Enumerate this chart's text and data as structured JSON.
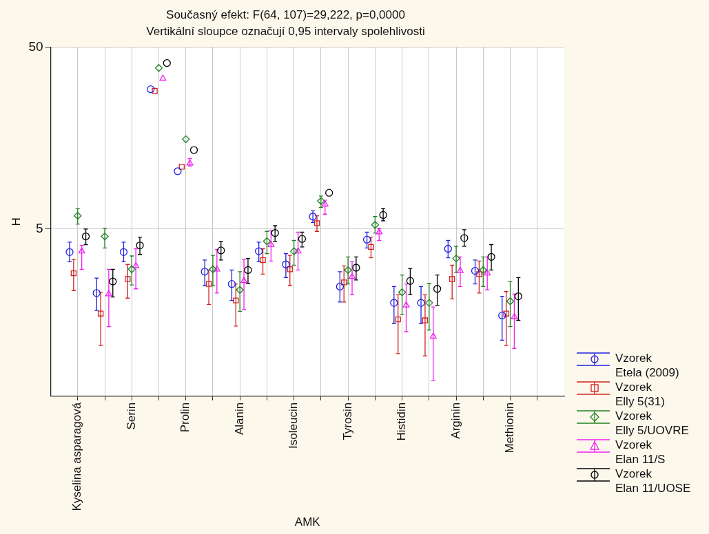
{
  "chart_data": {
    "type": "scatter",
    "title": "Současný efekt: F(64, 107)=29,222, p=0,0000",
    "subtitle": "Vertikální sloupce označují 0,95 intervaly spolehlivosti",
    "xlabel": "AMK",
    "ylabel": "H",
    "categories": [
      "Kyselina asparagová",
      null,
      "Serin",
      null,
      "Prolin",
      null,
      "Alanin",
      null,
      "Isoleucin",
      null,
      "Tyrosin",
      null,
      "Histidin",
      null,
      "Arginin",
      null,
      "Methionin",
      null
    ],
    "log": "y",
    "ylim": [
      0.62,
      50
    ],
    "yticks": [
      5,
      50
    ],
    "grid": true,
    "legend": "bottom right",
    "series": [
      {
        "name": "Vzorek\nEtela (2009)",
        "color": "#2020e0",
        "marker": "circle",
        "values": [
          3.73,
          2.22,
          3.73,
          29.4,
          10.4,
          2.91,
          2.49,
          3.77,
          3.19,
          5.85,
          2.41,
          4.37,
          1.96,
          1.96,
          3.89,
          2.94,
          1.67,
          null
        ],
        "errors": [
          [
            3.3,
            4.23
          ],
          [
            1.78,
            2.68
          ],
          [
            3.3,
            4.23
          ],
          null,
          null,
          [
            2.44,
            3.37
          ],
          [
            2.02,
            2.97
          ],
          [
            3.3,
            4.23
          ],
          [
            2.7,
            3.66
          ],
          [
            5.43,
            6.29
          ],
          [
            1.98,
            2.91
          ],
          [
            3.93,
            4.8
          ],
          [
            1.51,
            2.41
          ],
          [
            1.51,
            2.41
          ],
          [
            3.47,
            4.32
          ],
          [
            2.49,
            3.37
          ],
          [
            1.22,
            2.13
          ],
          null
        ]
      },
      {
        "name": "Vzorek\nElly 5(31)",
        "color": "#d02020",
        "marker": "square",
        "values": [
          2.85,
          1.71,
          2.65,
          28.8,
          11.0,
          2.49,
          2.02,
          3.37,
          3.0,
          5.38,
          2.54,
          3.98,
          1.59,
          1.57,
          2.65,
          2.82,
          1.71,
          null
        ],
        "errors": [
          [
            2.29,
            3.4
          ],
          [
            1.14,
            2.24
          ],
          [
            2.08,
            3.19
          ],
          null,
          null,
          [
            1.92,
            2.97
          ],
          [
            1.46,
            2.49
          ],
          [
            2.82,
            3.89
          ],
          [
            2.44,
            3.58
          ],
          [
            4.85,
            5.91
          ],
          [
            1.98,
            3.13
          ],
          [
            3.47,
            4.51
          ],
          [
            1.03,
            2.17
          ],
          [
            1.0,
            2.17
          ],
          [
            2.06,
            3.16
          ],
          [
            2.22,
            3.33
          ],
          [
            1.14,
            2.26
          ],
          null
        ]
      },
      {
        "name": "Vzorek\nElly 5/UOVRE",
        "color": "#208020",
        "marker": "diamond",
        "values": [
          5.91,
          4.55,
          3.0,
          38.5,
          15.6,
          3.0,
          2.31,
          4.28,
          3.77,
          7.13,
          2.97,
          5.27,
          2.24,
          1.96,
          3.44,
          2.97,
          2.0,
          null
        ],
        "errors": [
          [
            5.32,
            6.49
          ],
          [
            3.93,
            5.05
          ],
          [
            2.46,
            3.55
          ],
          null,
          null,
          [
            2.44,
            3.58
          ],
          [
            1.76,
            2.91
          ],
          [
            3.66,
            4.85
          ],
          [
            3.16,
            4.32
          ],
          [
            6.56,
            7.59
          ],
          [
            2.49,
            3.51
          ],
          [
            4.75,
            5.85
          ],
          [
            1.69,
            2.79
          ],
          [
            1.39,
            2.51
          ],
          [
            2.88,
            4.02
          ],
          [
            2.41,
            3.51
          ],
          [
            1.45,
            2.57
          ],
          null
        ]
      },
      {
        "name": "Vzorek\nElan 11/S",
        "color": "#f020f0",
        "marker": "triangle",
        "values": [
          3.77,
          2.19,
          3.13,
          33.7,
          11.5,
          3.0,
          2.59,
          4.1,
          3.77,
          6.83,
          2.73,
          4.8,
          1.9,
          1.28,
          2.94,
          2.85,
          1.64,
          null
        ],
        "errors": [
          [
            3.0,
            4.06
          ],
          [
            1.45,
            3.0
          ],
          [
            2.34,
            3.89
          ],
          null,
          [
            11.1,
            12.2
          ],
          [
            2.22,
            3.85
          ],
          [
            1.8,
            3.4
          ],
          [
            3.33,
            4.9
          ],
          [
            2.97,
            4.8
          ],
          [
            6.03,
            7.2
          ],
          [
            2.17,
            3.3
          ],
          [
            4.32,
            5.05
          ],
          [
            1.36,
            2.49
          ],
          [
            0.73,
            1.86
          ],
          [
            2.41,
            3.51
          ],
          [
            2.31,
            3.51
          ],
          [
            1.1,
            2.19
          ],
          null
        ]
      },
      {
        "name": "Vzorek\nElan 11/UOSE",
        "color": "#000000",
        "marker": "circle",
        "values": [
          4.55,
          2.57,
          4.06,
          41.0,
          13.6,
          3.81,
          2.97,
          4.75,
          4.41,
          7.91,
          3.06,
          5.97,
          2.59,
          2.34,
          4.46,
          3.51,
          2.13,
          null
        ],
        "errors": [
          [
            4.1,
            5.0
          ],
          [
            2.11,
            3.0
          ],
          [
            3.62,
            4.51
          ],
          null,
          null,
          [
            3.37,
            4.28
          ],
          [
            2.51,
            3.44
          ],
          [
            4.28,
            5.21
          ],
          [
            3.98,
            4.8
          ],
          null,
          [
            2.62,
            3.51
          ],
          [
            5.55,
            6.49
          ],
          [
            2.17,
            3.03
          ],
          [
            1.9,
            2.79
          ],
          [
            4.02,
            4.95
          ],
          [
            2.97,
            4.1
          ],
          [
            1.57,
            2.7
          ],
          null
        ]
      }
    ]
  }
}
